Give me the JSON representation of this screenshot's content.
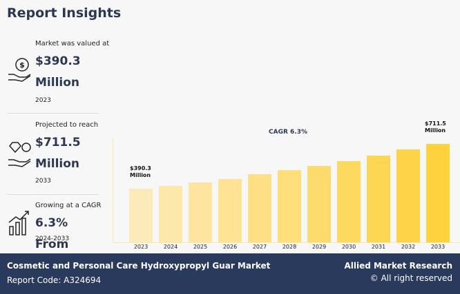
{
  "header": {
    "title": "Report Insights"
  },
  "stats": [
    {
      "caption": "Market was valued at",
      "value": "$390.3 Million",
      "period": "2023"
    },
    {
      "caption": "Projected to reach",
      "value": "$711.5 Million",
      "period": "2033"
    },
    {
      "caption": "Growing at a CAGR",
      "value": "6.3% From",
      "period": "2024-2033"
    }
  ],
  "chart_data": {
    "type": "bar",
    "annotation": "CAGR 6.3%",
    "categories": [
      "2023",
      "2024",
      "2025",
      "2026",
      "2027",
      "2028",
      "2029",
      "2030",
      "2031",
      "2032",
      "2033"
    ],
    "values": [
      390.3,
      410,
      435,
      460,
      490,
      520,
      550,
      585,
      625,
      670,
      711.5
    ],
    "value_labels": [
      "$390.3 Million",
      null,
      null,
      null,
      null,
      null,
      null,
      null,
      null,
      null,
      "$711.5 Million"
    ],
    "ylim": [
      0,
      756
    ]
  },
  "footer": {
    "title": "Cosmetic and Personal Care Hydroxypropyl Guar Market",
    "code": "Report Code: A324694",
    "brand": "Allied Market Research",
    "rights": "© All right reserved"
  }
}
